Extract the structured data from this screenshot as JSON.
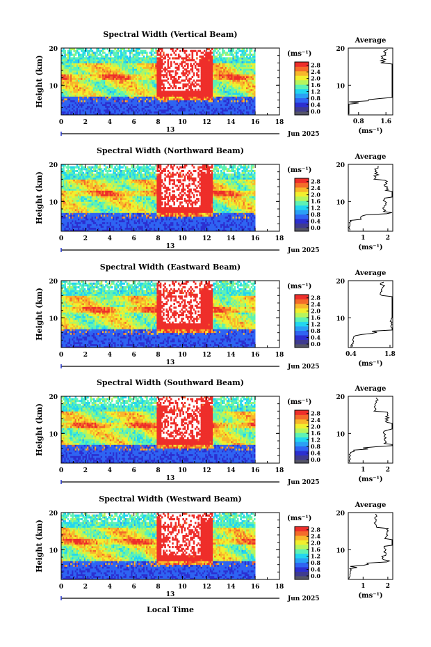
{
  "figure": {
    "xlabel": "Local Time",
    "date_label": "13",
    "month_label": "Jun 2025",
    "colorbar_unit": "(ms⁻¹)",
    "colorbar_ticks": [
      "0.0",
      "0.4",
      "0.8",
      "1.2",
      "1.6",
      "2.0",
      "2.4",
      "2.8"
    ],
    "colormap": [
      "#3f3b8f",
      "#2c2fd0",
      "#2f64f2",
      "#2aa0f5",
      "#22d6f0",
      "#5ef2b4",
      "#b7f55d",
      "#f2ef2e",
      "#f8b72b",
      "#f46b2a",
      "#ee2e2a"
    ],
    "average_title": "Average",
    "average_xlabel": "(ms⁻¹)"
  },
  "chart_data": [
    {
      "type": "heatmap",
      "title": "Spectral Width (Vertical Beam)",
      "xlabel": "Local Time",
      "ylabel": "Height (km)",
      "x_ticks": [
        "0",
        "2",
        "4",
        "6",
        "8",
        "10",
        "12",
        "14",
        "16",
        "18"
      ],
      "y_ticks": [
        "20",
        "10"
      ],
      "xlim": [
        0,
        18
      ],
      "ylim": [
        2,
        20
      ],
      "value_range": [
        0.0,
        3.0
      ],
      "profile": {
        "title": "Average",
        "xlabel": "(ms⁻¹)",
        "x_ticks": [
          "0.8",
          "1.6"
        ],
        "xlim": [
          0.5,
          1.8
        ],
        "y_ticks": [
          "20",
          "10"
        ]
      }
    },
    {
      "type": "heatmap",
      "title": "Spectral Width (Northward Beam)",
      "xlabel": "Local Time",
      "ylabel": "Height (km)",
      "x_ticks": [
        "0",
        "2",
        "4",
        "6",
        "8",
        "10",
        "12",
        "14",
        "16",
        "18"
      ],
      "y_ticks": [
        "20",
        "10"
      ],
      "xlim": [
        0,
        18
      ],
      "ylim": [
        2,
        20
      ],
      "value_range": [
        0.0,
        3.0
      ],
      "profile": {
        "title": "Average",
        "xlabel": "(ms⁻¹)",
        "x_ticks": [
          "1",
          "2"
        ],
        "xlim": [
          0.4,
          2.2
        ],
        "y_ticks": [
          "20",
          "10"
        ]
      }
    },
    {
      "type": "heatmap",
      "title": "Spectral Width (Eastward Beam)",
      "xlabel": "Local Time",
      "ylabel": "Height (km)",
      "x_ticks": [
        "0",
        "2",
        "4",
        "6",
        "8",
        "10",
        "12",
        "14",
        "16",
        "18"
      ],
      "y_ticks": [
        "20",
        "10"
      ],
      "xlim": [
        0,
        18
      ],
      "ylim": [
        2,
        20
      ],
      "value_range": [
        0.0,
        3.0
      ],
      "profile": {
        "title": "Average",
        "xlabel": "(ms⁻¹)",
        "x_ticks": [
          "0.4",
          "1.8"
        ],
        "xlim": [
          0.3,
          1.9
        ],
        "y_ticks": [
          "20",
          "10"
        ]
      }
    },
    {
      "type": "heatmap",
      "title": "Spectral Width (Southward Beam)",
      "xlabel": "Local Time",
      "ylabel": "Height (km)",
      "x_ticks": [
        "0",
        "2",
        "4",
        "6",
        "8",
        "10",
        "12",
        "14",
        "16",
        "18"
      ],
      "y_ticks": [
        "20",
        "10"
      ],
      "xlim": [
        0,
        18
      ],
      "ylim": [
        2,
        20
      ],
      "value_range": [
        0.0,
        3.0
      ],
      "profile": {
        "title": "Average",
        "xlabel": "(ms⁻¹)",
        "x_ticks": [
          "1",
          "2"
        ],
        "xlim": [
          0.4,
          2.2
        ],
        "y_ticks": [
          "20",
          "10"
        ]
      }
    },
    {
      "type": "heatmap",
      "title": "Spectral Width (Westward Beam)",
      "xlabel": "Local Time",
      "ylabel": "Height (km)",
      "x_ticks": [
        "0",
        "2",
        "4",
        "6",
        "8",
        "10",
        "12",
        "14",
        "16",
        "18"
      ],
      "y_ticks": [
        "20",
        "10"
      ],
      "xlim": [
        0,
        18
      ],
      "ylim": [
        2,
        20
      ],
      "value_range": [
        0.0,
        3.0
      ],
      "profile": {
        "title": "Average",
        "xlabel": "(ms⁻¹)",
        "x_ticks": [
          "1",
          "2"
        ],
        "xlim": [
          0.4,
          2.2
        ],
        "y_ticks": [
          "20",
          "10"
        ]
      }
    }
  ]
}
